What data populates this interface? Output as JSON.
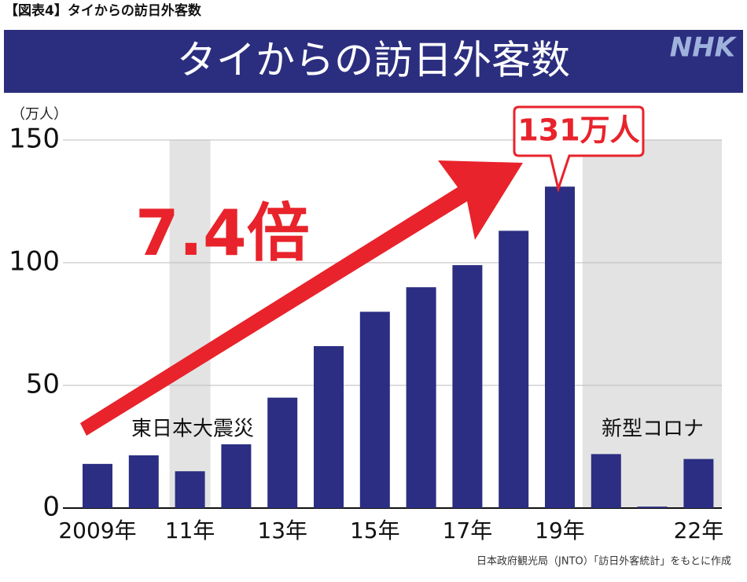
{
  "header": "【図表4】タイからの訪日外客数",
  "chart_data": {
    "type": "bar",
    "title": "タイからの訪日外客数",
    "brand": "NHK",
    "y_label": "（万人）",
    "categories": [
      "2009年",
      null,
      "11年",
      null,
      "13年",
      null,
      "15年",
      null,
      "17年",
      null,
      "19年",
      null,
      null,
      "22年"
    ],
    "values": [
      18,
      21.5,
      15,
      26,
      45,
      66,
      80,
      90,
      99,
      113,
      131,
      22,
      0.6,
      20
    ],
    "color": "#2b2e82",
    "ylim": [
      0,
      150
    ],
    "yticks": [
      0,
      50,
      100,
      150
    ],
    "grid": true,
    "annotations": {
      "growth": "7.4倍",
      "peak": "131万人",
      "earthquake": "東日本大震災",
      "covid": "新型コロナ"
    },
    "source": "日本政府観光局（JNTO）「訪日外客統計」をもとに作成"
  }
}
